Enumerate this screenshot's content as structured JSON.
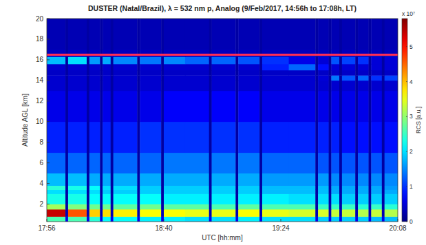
{
  "chart_data": {
    "type": "heatmap",
    "title": "DUSTER (Natal/Brazil), λ = 532 nm p, Analog (9/Feb/2017, 14:56h to 17:08h, LT)",
    "x_label": "UTC [hh:mm]",
    "y_label": "Altitude AGL [km]",
    "xlim": [
      1076,
      1208
    ],
    "xticks": [
      {
        "value": 1076,
        "label": "17:56"
      },
      {
        "value": 1120,
        "label": "18:40"
      },
      {
        "value": 1164,
        "label": "19:24"
      },
      {
        "value": 1208,
        "label": "20:08"
      }
    ],
    "ylim": [
      0.3,
      20
    ],
    "yticks": [
      2,
      4,
      6,
      8,
      10,
      12,
      14,
      16,
      18,
      20
    ],
    "grid": false,
    "x_edges": [
      1076,
      1083,
      1084,
      1091,
      1092,
      1096,
      1097,
      1100,
      1101,
      1110,
      1111,
      1119,
      1120,
      1128,
      1137,
      1138,
      1147,
      1148,
      1156,
      1157,
      1167,
      1177,
      1178,
      1182,
      1183,
      1186,
      1187,
      1192,
      1193,
      1197,
      1198,
      1202,
      1203,
      1208
    ],
    "y_edges": [
      0.3,
      0.8,
      1.5,
      2,
      3,
      3.4,
      3.8,
      5,
      7,
      10,
      13,
      14,
      14.5,
      15,
      15.6,
      16.3,
      17,
      20
    ],
    "values": [
      [
        2.6,
        0.6,
        2.6,
        0.6,
        2.4,
        0.6,
        2.2,
        0.6,
        2.2,
        0.6,
        2.1,
        0.6,
        2.1,
        2.0,
        0.6,
        2.0,
        0.6,
        2.1,
        0.6,
        2.0,
        2.0,
        0.6,
        1.9,
        0.6,
        1.9,
        0.6,
        1.9,
        0.6,
        1.9,
        0.6,
        1.8,
        0.6,
        1.8
      ],
      [
        5.4,
        0.3,
        4.6,
        0.3,
        3.9,
        0.3,
        3.8,
        0.3,
        3.7,
        0.3,
        3.6,
        0.3,
        3.6,
        3.5,
        0.3,
        3.5,
        0.3,
        3.6,
        0.3,
        3.5,
        3.4,
        0.3,
        3.4,
        0.3,
        3.3,
        0.3,
        3.3,
        0.3,
        3.2,
        0.3,
        3.3,
        0.3,
        3.2
      ],
      [
        3.1,
        0.25,
        2.9,
        0.25,
        2.8,
        0.25,
        2.8,
        0.25,
        2.7,
        0.25,
        2.8,
        0.25,
        2.7,
        2.7,
        0.25,
        2.6,
        0.25,
        2.7,
        0.25,
        2.6,
        2.6,
        0.25,
        2.5,
        0.25,
        2.5,
        0.25,
        2.5,
        0.25,
        2.4,
        0.25,
        2.5,
        0.25,
        2.4
      ],
      [
        2.3,
        0.2,
        2.3,
        0.2,
        2.2,
        0.2,
        2.2,
        0.2,
        2.2,
        0.2,
        2.2,
        0.2,
        2.1,
        2.1,
        0.2,
        2.1,
        0.2,
        2.1,
        0.2,
        2.1,
        2.0,
        0.2,
        2.0,
        0.2,
        2.0,
        0.2,
        1.9,
        0.2,
        1.9,
        0.2,
        1.9,
        0.2,
        1.9
      ],
      [
        2.0,
        0.2,
        2.0,
        0.2,
        2.0,
        0.2,
        1.9,
        0.2,
        1.9,
        0.2,
        1.9,
        0.2,
        1.9,
        1.9,
        0.2,
        1.9,
        0.2,
        1.9,
        0.2,
        1.8,
        1.8,
        0.2,
        1.8,
        0.2,
        1.7,
        0.2,
        1.7,
        0.2,
        1.7,
        0.2,
        1.7,
        0.2,
        1.7
      ],
      [
        2.4,
        0.2,
        2.3,
        0.2,
        2.2,
        0.2,
        2.0,
        0.2,
        2.0,
        0.2,
        1.9,
        0.2,
        1.9,
        1.9,
        0.2,
        1.9,
        0.2,
        1.9,
        0.2,
        1.8,
        1.8,
        0.2,
        1.8,
        0.2,
        1.7,
        0.2,
        1.7,
        0.2,
        1.7,
        0.2,
        1.7,
        0.2,
        1.6
      ],
      [
        1.8,
        0.2,
        1.8,
        0.2,
        1.7,
        0.2,
        1.7,
        0.2,
        1.7,
        0.2,
        1.7,
        0.2,
        1.7,
        1.7,
        0.2,
        1.7,
        0.2,
        1.7,
        0.2,
        1.6,
        1.6,
        0.2,
        1.6,
        0.2,
        1.5,
        0.2,
        1.5,
        0.2,
        1.5,
        0.2,
        1.5,
        0.2,
        1.5
      ],
      [
        1.3,
        0.2,
        1.3,
        0.2,
        1.3,
        0.2,
        1.3,
        0.2,
        1.3,
        0.2,
        1.3,
        0.2,
        1.4,
        1.4,
        0.2,
        1.4,
        0.2,
        1.4,
        0.2,
        1.3,
        1.3,
        0.2,
        1.2,
        0.2,
        1.2,
        0.2,
        1.2,
        0.2,
        1.2,
        0.2,
        1.2,
        0.2,
        1.2
      ],
      [
        0.9,
        0.2,
        0.9,
        0.2,
        0.9,
        0.2,
        0.9,
        0.2,
        0.9,
        0.2,
        1.0,
        0.2,
        1.0,
        1.0,
        0.2,
        1.0,
        0.2,
        1.0,
        0.2,
        0.9,
        0.9,
        0.2,
        0.9,
        0.2,
        0.9,
        0.2,
        0.8,
        0.2,
        0.8,
        0.2,
        0.8,
        0.2,
        0.8
      ],
      [
        0.6,
        0.2,
        0.6,
        0.2,
        0.6,
        0.2,
        0.6,
        0.2,
        0.6,
        0.2,
        0.6,
        0.2,
        0.7,
        0.7,
        0.2,
        0.7,
        0.2,
        0.7,
        0.2,
        0.6,
        0.6,
        0.2,
        0.6,
        0.2,
        0.6,
        0.2,
        0.6,
        0.2,
        0.6,
        0.2,
        0.6,
        0.2,
        0.6
      ],
      [
        0.45,
        0.2,
        0.45,
        0.2,
        0.45,
        0.2,
        0.45,
        0.2,
        0.45,
        0.2,
        0.45,
        0.2,
        0.45,
        0.45,
        0.2,
        0.45,
        0.2,
        0.45,
        0.2,
        0.45,
        0.45,
        0.2,
        0.45,
        0.2,
        0.45,
        0.2,
        0.45,
        0.2,
        0.45,
        0.2,
        0.45,
        0.2,
        0.45
      ],
      [
        0.45,
        0.2,
        0.45,
        0.2,
        0.45,
        0.2,
        0.45,
        0.2,
        0.45,
        0.2,
        0.45,
        0.2,
        0.45,
        0.45,
        0.2,
        0.45,
        0.2,
        0.45,
        0.2,
        0.45,
        0.45,
        0.2,
        0.5,
        0.2,
        1.4,
        0.2,
        1.2,
        0.2,
        1.3,
        0.2,
        1.0,
        0.2,
        1.1
      ],
      [
        0.4,
        0.2,
        0.4,
        0.2,
        0.4,
        0.2,
        0.4,
        0.2,
        0.4,
        0.2,
        0.4,
        0.2,
        0.4,
        0.4,
        0.2,
        0.4,
        0.2,
        0.4,
        0.2,
        0.4,
        0.4,
        0.2,
        0.4,
        0.2,
        0.4,
        0.2,
        0.4,
        0.2,
        0.4,
        0.2,
        0.4,
        0.2,
        0.4
      ],
      [
        0.45,
        0.2,
        0.45,
        0.2,
        0.45,
        0.2,
        0.45,
        0.2,
        0.45,
        0.2,
        0.45,
        0.2,
        0.45,
        0.45,
        0.2,
        0.45,
        0.2,
        0.45,
        0.2,
        0.9,
        1.3,
        0.2,
        0.8,
        0.2,
        0.5,
        0.2,
        0.5,
        0.2,
        0.5,
        0.2,
        0.5,
        0.2,
        0.5
      ],
      [
        1.8,
        0.2,
        2.0,
        0.2,
        1.6,
        0.2,
        1.7,
        0.2,
        1.5,
        0.2,
        1.4,
        0.2,
        1.5,
        1.3,
        0.2,
        1.3,
        0.2,
        1.2,
        0.2,
        1.0,
        0.6,
        0.2,
        0.5,
        0.2,
        1.2,
        0.2,
        1.1,
        0.2,
        1.0,
        0.2,
        0.5,
        0.2,
        0.5
      ],
      [
        0.35,
        0.2,
        0.35,
        0.2,
        0.35,
        0.2,
        0.35,
        0.2,
        0.35,
        0.2,
        0.35,
        0.2,
        0.35,
        0.35,
        0.2,
        0.35,
        0.2,
        0.35,
        0.2,
        0.35,
        0.35,
        0.2,
        0.35,
        0.2,
        0.35,
        0.2,
        0.35,
        0.2,
        0.35,
        0.2,
        0.35,
        0.2,
        0.35
      ],
      [
        0.3,
        0.2,
        0.3,
        0.2,
        0.3,
        0.2,
        0.3,
        0.2,
        0.3,
        0.2,
        0.3,
        0.2,
        0.3,
        0.3,
        0.2,
        0.3,
        0.2,
        0.3,
        0.2,
        0.3,
        0.3,
        0.2,
        0.3,
        0.2,
        0.3,
        0.2,
        0.3,
        0.2,
        0.3,
        0.2,
        0.3,
        0.2,
        0.3
      ]
    ],
    "colorbar_lim": [
      0,
      5.8
    ],
    "colorbar_ticks": [
      0,
      1,
      2,
      3,
      4,
      5
    ],
    "colorbar_label": "RCS [a.u.]",
    "colorbar_scale_label": "x 10⁷",
    "reference_lines": [
      {
        "value": 16.5,
        "color": "#ff2d55"
      }
    ]
  }
}
